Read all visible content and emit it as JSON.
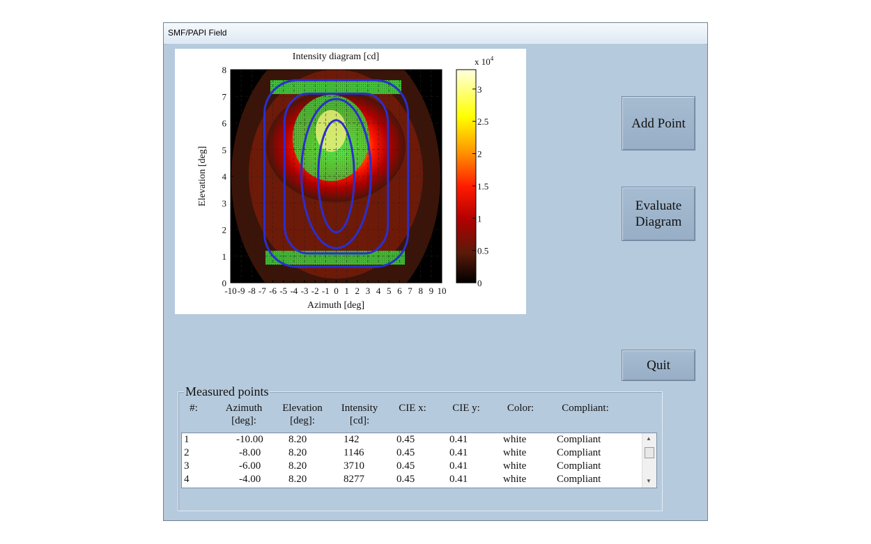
{
  "window": {
    "title": "SMF/PAPI Field"
  },
  "buttons": {
    "add_point": "Add Point",
    "evaluate_line1": "Evaluate",
    "evaluate_line2": "Diagram",
    "quit": "Quit"
  },
  "chart_data": {
    "type": "heatmap",
    "title": "Intensity diagram [cd]",
    "xlabel": "Azimuth [deg]",
    "ylabel": "Elevation [deg]",
    "xlim": [
      -10,
      10
    ],
    "ylim": [
      0,
      8
    ],
    "x_ticks": [
      "-10",
      "-9",
      "-8",
      "-7",
      "-6",
      "-5",
      "-4",
      "-3",
      "-2",
      "-1",
      "0",
      "1",
      "2",
      "3",
      "4",
      "5",
      "6",
      "7",
      "8",
      "9",
      "10"
    ],
    "y_ticks": [
      "0",
      "1",
      "2",
      "3",
      "4",
      "5",
      "6",
      "7",
      "8"
    ],
    "grid": true,
    "colorbar": {
      "multiplier": "x 10",
      "exponent": "4",
      "ticks": [
        "0",
        "0.5",
        "1",
        "1.5",
        "2",
        "2.5",
        "3"
      ],
      "range": [
        0,
        3.3
      ],
      "colormap": [
        "#000000",
        "#5a1a0a",
        "#b30000",
        "#ff0000",
        "#ff9900",
        "#ffff00",
        "#ffffcc"
      ]
    },
    "contours_color": "#2a2fd0"
  },
  "measured": {
    "legend": "Measured points",
    "headers": [
      {
        "l1": "#:",
        "l2": ""
      },
      {
        "l1": "Azimuth",
        "l2": "[deg]:"
      },
      {
        "l1": "Elevation",
        "l2": "[deg]:"
      },
      {
        "l1": "Intensity",
        "l2": "[cd]:"
      },
      {
        "l1": "CIE x:",
        "l2": ""
      },
      {
        "l1": "CIE y:",
        "l2": ""
      },
      {
        "l1": "Color:",
        "l2": ""
      },
      {
        "l1": "Compliant:",
        "l2": ""
      }
    ],
    "rows": [
      {
        "n": "1",
        "az": "-10.00",
        "el": "8.20",
        "int": "142",
        "x": "0.45",
        "y": "0.41",
        "color": "white",
        "comp": "Compliant"
      },
      {
        "n": "2",
        "az": "-8.00",
        "el": "8.20",
        "int": "1146",
        "x": "0.45",
        "y": "0.41",
        "color": "white",
        "comp": "Compliant"
      },
      {
        "n": "3",
        "az": "-6.00",
        "el": "8.20",
        "int": "3710",
        "x": "0.45",
        "y": "0.41",
        "color": "white",
        "comp": "Compliant"
      },
      {
        "n": "4",
        "az": "-4.00",
        "el": "8.20",
        "int": "8277",
        "x": "0.45",
        "y": "0.41",
        "color": "white",
        "comp": "Compliant"
      }
    ]
  }
}
